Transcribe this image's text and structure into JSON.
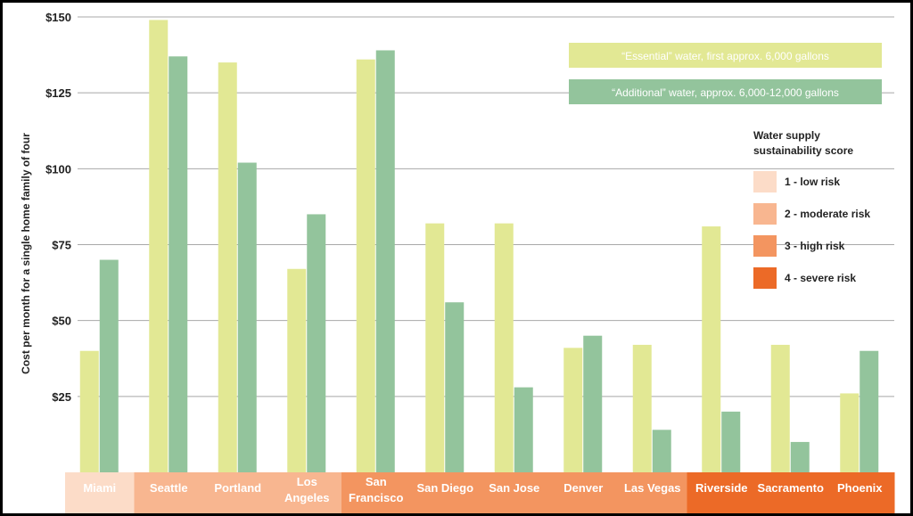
{
  "chart_data": {
    "type": "bar",
    "ylabel": "Cost per month for a single home family of four",
    "ylim": [
      0,
      150
    ],
    "yticks": [
      25,
      50,
      75,
      100,
      125,
      150
    ],
    "ytick_labels": [
      "$25",
      "$50",
      "$75",
      "$100",
      "$125",
      "$150"
    ],
    "grid": true,
    "categories": [
      {
        "label": [
          "Miami"
        ],
        "risk": 1
      },
      {
        "label": [
          "Seattle"
        ],
        "risk": 2
      },
      {
        "label": [
          "Portland"
        ],
        "risk": 2
      },
      {
        "label": [
          "Los",
          "Angeles"
        ],
        "risk": 2
      },
      {
        "label": [
          "San",
          "Francisco"
        ],
        "risk": 3
      },
      {
        "label": [
          "San Diego"
        ],
        "risk": 3
      },
      {
        "label": [
          "San Jose"
        ],
        "risk": 3
      },
      {
        "label": [
          "Denver"
        ],
        "risk": 3
      },
      {
        "label": [
          "Las Vegas"
        ],
        "risk": 3
      },
      {
        "label": [
          "Riverside"
        ],
        "risk": 4
      },
      {
        "label": [
          "Sacramento"
        ],
        "risk": 4
      },
      {
        "label": [
          "Phoenix"
        ],
        "risk": 4
      }
    ],
    "series": [
      {
        "name": "“Essential” water, first approx. 6,000 gallons",
        "color": "#e2e894",
        "values": [
          40,
          149,
          135,
          67,
          136,
          82,
          82,
          41,
          42,
          81,
          42,
          26
        ]
      },
      {
        "name": "“Additional” water, approx. 6,000-12,000 gallons",
        "color": "#93c49c",
        "values": [
          70,
          137,
          102,
          85,
          139,
          56,
          28,
          45,
          14,
          20,
          10,
          40
        ]
      }
    ],
    "risk_legend": {
      "title": [
        "Water supply",
        "sustainability score"
      ],
      "items": [
        {
          "label": "1 - low risk",
          "color": "#fcdcc8"
        },
        {
          "label": "2 - moderate risk",
          "color": "#f8b690"
        },
        {
          "label": "3 - high risk",
          "color": "#f39560"
        },
        {
          "label": "4 - severe risk",
          "color": "#ec6a27"
        }
      ]
    },
    "miami_label_color": "#f39b73"
  }
}
